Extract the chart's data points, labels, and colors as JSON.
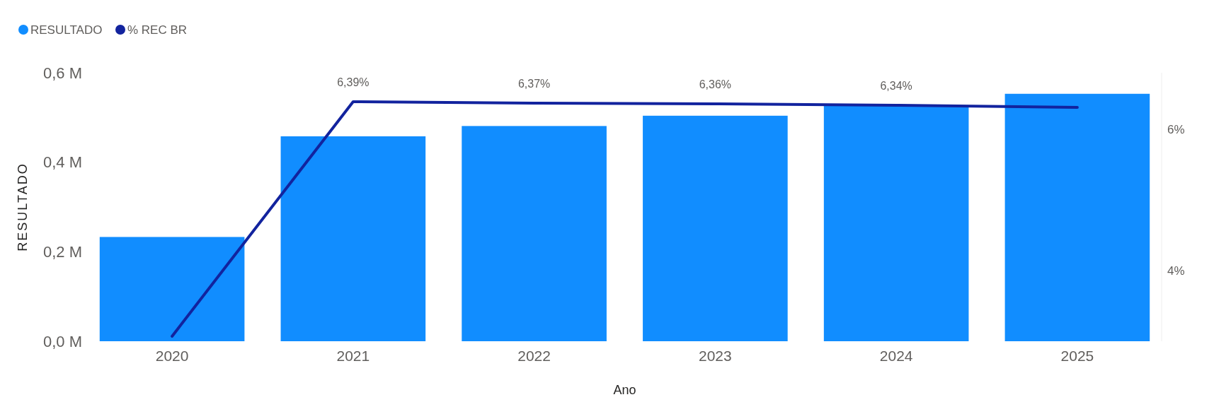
{
  "chart_data": {
    "type": "bar",
    "xlabel": "Ano",
    "ylabel": "RESULTADO",
    "categories": [
      "2020",
      "2021",
      "2022",
      "2023",
      "2024",
      "2025"
    ],
    "series": [
      {
        "name": "RESULTADO",
        "color": "#118dff",
        "values": [
          0.233,
          0.458,
          0.481,
          0.504,
          0.526,
          0.553
        ]
      },
      {
        "name": "% REC BR",
        "type": "line",
        "axis": "y2",
        "color": "#12239e",
        "values": [
          3.07,
          6.39,
          6.37,
          6.36,
          6.34,
          6.31
        ],
        "value_labels": [
          null,
          "6,39%",
          "6,37%",
          "6,36%",
          "6,34%",
          null
        ]
      }
    ],
    "ylim": [
      0,
      0.6
    ],
    "yticks": [
      {
        "value": 0,
        "label": "0,0 M"
      },
      {
        "value": 0.2,
        "label": "0,2 M"
      },
      {
        "value": 0.4,
        "label": "0,4 M"
      },
      {
        "value": 0.6,
        "label": "0,6 M"
      }
    ],
    "y2lim": [
      3,
      6.8
    ],
    "y2ticks": [
      {
        "value": 4,
        "label": "4%"
      },
      {
        "value": 6,
        "label": "6%"
      }
    ],
    "legend": "top left"
  }
}
